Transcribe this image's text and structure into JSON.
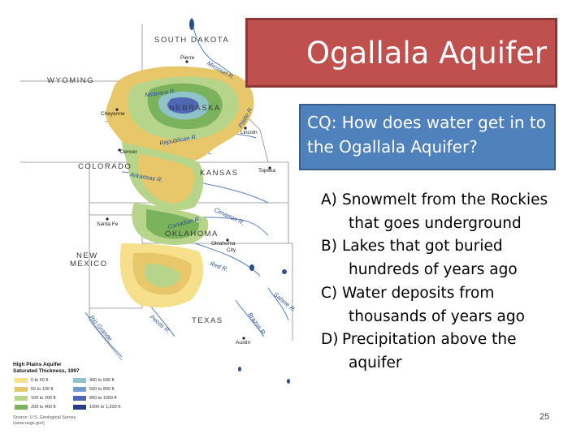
{
  "slide": {
    "title": "Ogallala Aquifer",
    "question": "CQ: How does water get in to the Ogallala Aquifer?",
    "answers": [
      {
        "label": "A)",
        "line1": "Snowmelt from the Rockies",
        "line2": "that goes underground"
      },
      {
        "label": "B)",
        "line1": "Lakes that got buried",
        "line2": "hundreds of years ago"
      },
      {
        "label": "C)",
        "line1": "Water deposits from",
        "line2": "thousands of years ago"
      },
      {
        "label": "D)",
        "line1": "Precipitation above the",
        "line2": "aquifer"
      }
    ],
    "page_number": "25"
  },
  "map": {
    "states": {
      "south_dakota": "SOUTH DAKOTA",
      "wyoming": "WYOMING",
      "nebraska": "NEBRASKA",
      "colorado": "COLORADO",
      "kansas": "KANSAS",
      "oklahoma": "OKLAHOMA",
      "new_mexico_1": "NEW",
      "new_mexico_2": "MEXICO",
      "texas": "TEXAS"
    },
    "cities": {
      "pierre": "Pierre",
      "cheyenne": "Cheyenne",
      "lincoln": "Lincoln",
      "denver": "Denver",
      "topeka": "Topeka",
      "santa_fe": "Santa Fe",
      "oklahoma_city_1": "Oklahoma",
      "oklahoma_city_2": "City",
      "austin": "Austin"
    },
    "rivers": {
      "missouri": "Missouri R.",
      "niobrara": "Niobrara R.",
      "platte": "Platte R.",
      "republican": "Republican R.",
      "arkansas": "Arkansas R.",
      "cimarron": "Cimarron R.",
      "canadian": "Canadian R.",
      "red": "Red R.",
      "sabine": "Sabine R.",
      "brazos": "Brazos R.",
      "pecos": "Pecos R.",
      "rio_grande": "Rio Grande"
    },
    "legend": {
      "title1": "High Plains Aquifer",
      "title2": "Saturated Thickness, 1997",
      "items": [
        {
          "label": "0 to 50 ft",
          "color": "#f6e08c"
        },
        {
          "label": "50 to 100 ft",
          "color": "#e7c76a"
        },
        {
          "label": "100 to 200 ft",
          "color": "#b6d48a"
        },
        {
          "label": "200 to 400 ft",
          "color": "#7bb35c"
        },
        {
          "label": "400 to 600 ft",
          "color": "#8fc3c9"
        },
        {
          "label": "600 to 800 ft",
          "color": "#6aa0cf"
        },
        {
          "label": "800 to 1000 ft",
          "color": "#5067b3"
        },
        {
          "label": "1000 to 1,200 ft",
          "color": "#2f3a86"
        }
      ],
      "source1": "Source: U.S. Geological Survey",
      "source2": "(www.usgs.gov)"
    }
  }
}
